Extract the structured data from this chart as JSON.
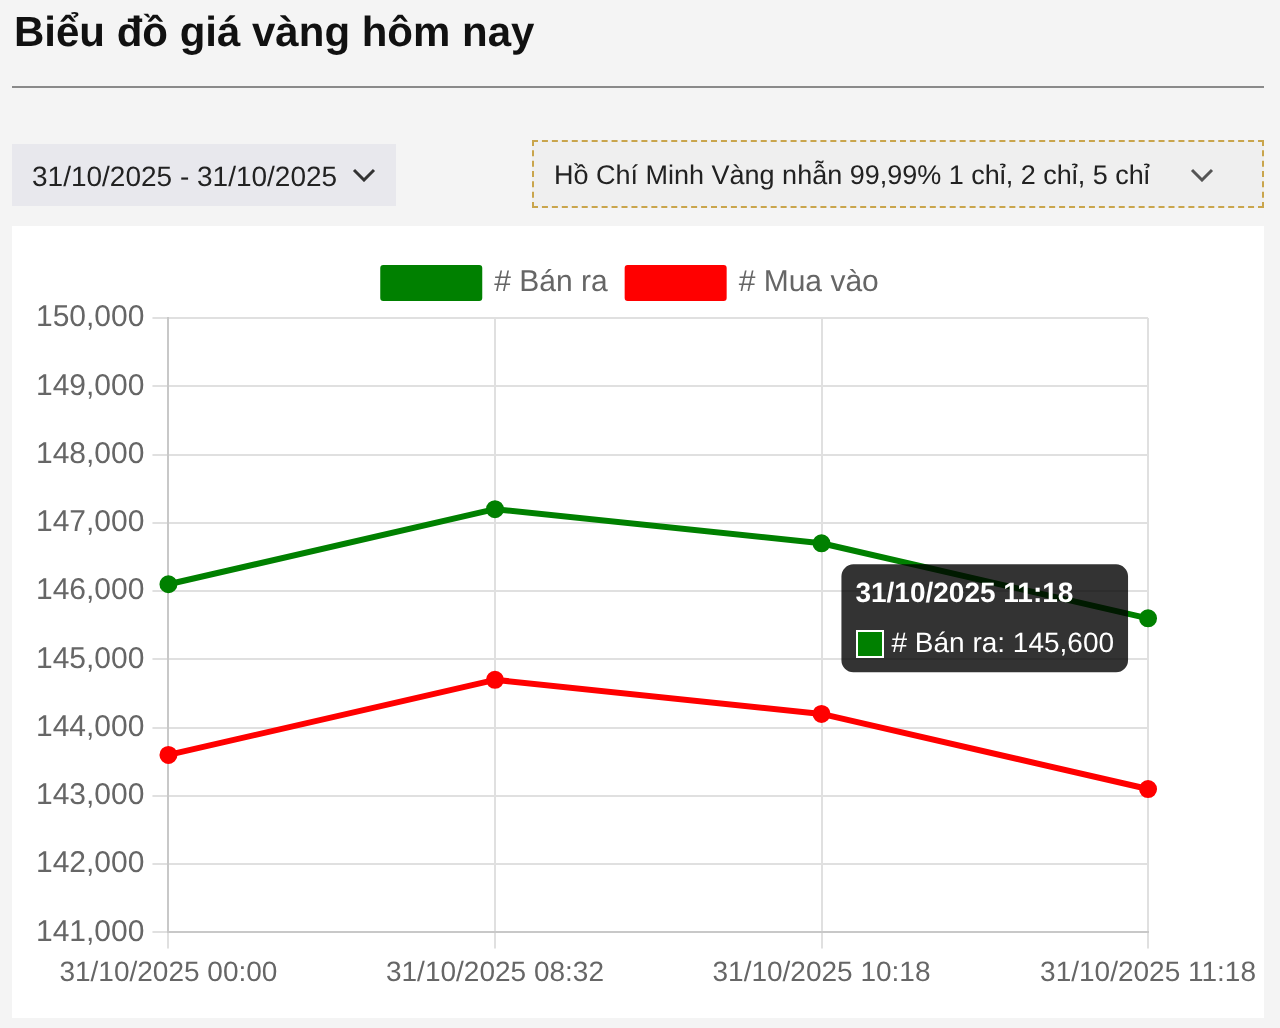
{
  "chart_data": {
    "type": "line",
    "title": "Biểu đồ giá vàng hôm nay",
    "annotations": [
      "31/10/2025 - 31/10/2025",
      "Hồ Chí Minh Vàng nhẫn 99,99% 1 chỉ, 2 chỉ, 5 chỉ",
      {
        "text": "31/10/2025 11:18\n# Bán ra: 145,600",
        "x": "31/10/2025 11:18",
        "y": 145600
      }
    ],
    "categories": [
      "31/10/2025 00:00",
      "31/10/2025 08:32",
      "31/10/2025 10:18",
      "31/10/2025 11:18"
    ],
    "series": [
      {
        "name": "# Bán ra",
        "color": "#008000",
        "values": [
          146100,
          147200,
          146700,
          145600
        ]
      },
      {
        "name": "# Mua vào",
        "color": "#ff0000",
        "values": [
          143600,
          144700,
          144200,
          143100
        ]
      }
    ],
    "ylim": [
      141000,
      150000
    ],
    "yticks": [
      {
        "value": 141000,
        "label": "141,000"
      },
      {
        "value": 142000,
        "label": "142,000"
      },
      {
        "value": 143000,
        "label": "143,000"
      },
      {
        "value": 144000,
        "label": "144,000"
      },
      {
        "value": 145000,
        "label": "145,000"
      },
      {
        "value": 146000,
        "label": "146,000"
      },
      {
        "value": 147000,
        "label": "147,000"
      },
      {
        "value": 148000,
        "label": "148,000"
      },
      {
        "value": 149000,
        "label": "149,000"
      },
      {
        "value": 150000,
        "label": "150,000"
      }
    ],
    "grid": true,
    "legend": "top",
    "marker": "circle"
  }
}
